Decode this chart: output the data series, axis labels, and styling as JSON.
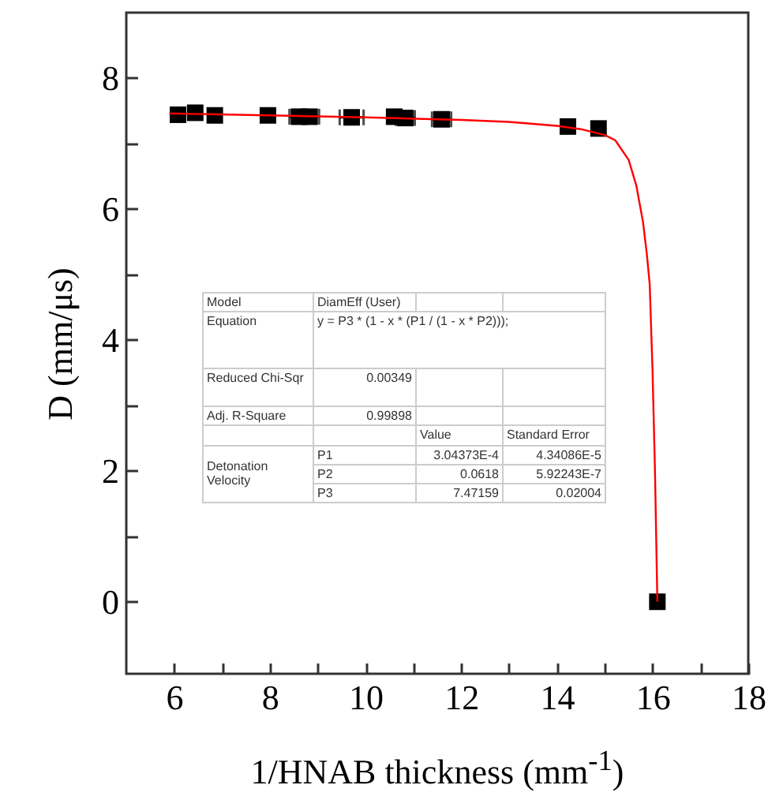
{
  "chart_data": {
    "type": "scatter",
    "xlabel": "1/HNAB thickness (mm$^{-1}$)",
    "ylabel": "D (mm/μs)",
    "xlim": [
      5,
      18
    ],
    "ylim": [
      -1.1,
      9
    ],
    "xticks": [
      6,
      {
        "value": 7,
        "label": null
      },
      8,
      {
        "value": 9,
        "label": null
      },
      10,
      {
        "value": 11,
        "label": null
      },
      12,
      {
        "value": 13,
        "label": null
      },
      14,
      {
        "value": 15,
        "label": null
      },
      16,
      {
        "value": 17,
        "label": null
      },
      18
    ],
    "yticks": [
      0,
      {
        "value": 1,
        "label": null
      },
      2,
      {
        "value": 3,
        "label": null
      },
      4,
      {
        "value": 5,
        "label": null
      },
      6,
      {
        "value": 7,
        "label": null
      },
      8
    ],
    "grid": false,
    "series": [
      {
        "type": "scatter",
        "color": "#000000",
        "marker": "square",
        "x": [
          6.08,
          6.44,
          6.85,
          7.96,
          8.61,
          8.83,
          9.71,
          10.6,
          10.83,
          11.59,
          14.23,
          14.87,
          16.1
        ],
        "values": [
          7.44,
          7.47,
          7.43,
          7.43,
          7.41,
          7.41,
          7.4,
          7.41,
          7.39,
          7.37,
          7.26,
          7.23,
          0
        ],
        "xerrors": [
          null,
          null,
          null,
          null,
          0.2,
          0.2,
          0.25,
          0.15,
          0.2,
          0.2,
          null,
          null,
          null
        ]
      },
      {
        "type": "line",
        "color": "#ff0000",
        "marker": "none",
        "line_style": "solid",
        "x": [
          5.9,
          8,
          10,
          12,
          13,
          14,
          14.5,
          15,
          15.22,
          15.5,
          15.66,
          15.8,
          15.88,
          15.94,
          16.0,
          16.05,
          16.1
        ],
        "values": [
          7.46,
          7.43,
          7.4,
          7.36,
          7.33,
          7.27,
          7.22,
          7.13,
          7.05,
          6.75,
          6.36,
          5.8,
          5.31,
          4.85,
          3.5,
          2.0,
          0
        ]
      }
    ],
    "annotations": [
      "Model",
      "DiamEff (User)",
      "Equation",
      "y = P3 * (1 - x * (P1 / (1 - x * P2)));",
      "Reduced Chi-Sqr",
      "0.00349",
      "Adj. R-Square",
      "0.99898",
      "Value",
      "Standard Error",
      "Detonation Velocity",
      "P1",
      "3.04373E-4",
      "4.34086E-5",
      "P2",
      "0.0618",
      "5.92243E-7",
      "P3",
      "7.47159",
      "0.02004"
    ]
  }
}
